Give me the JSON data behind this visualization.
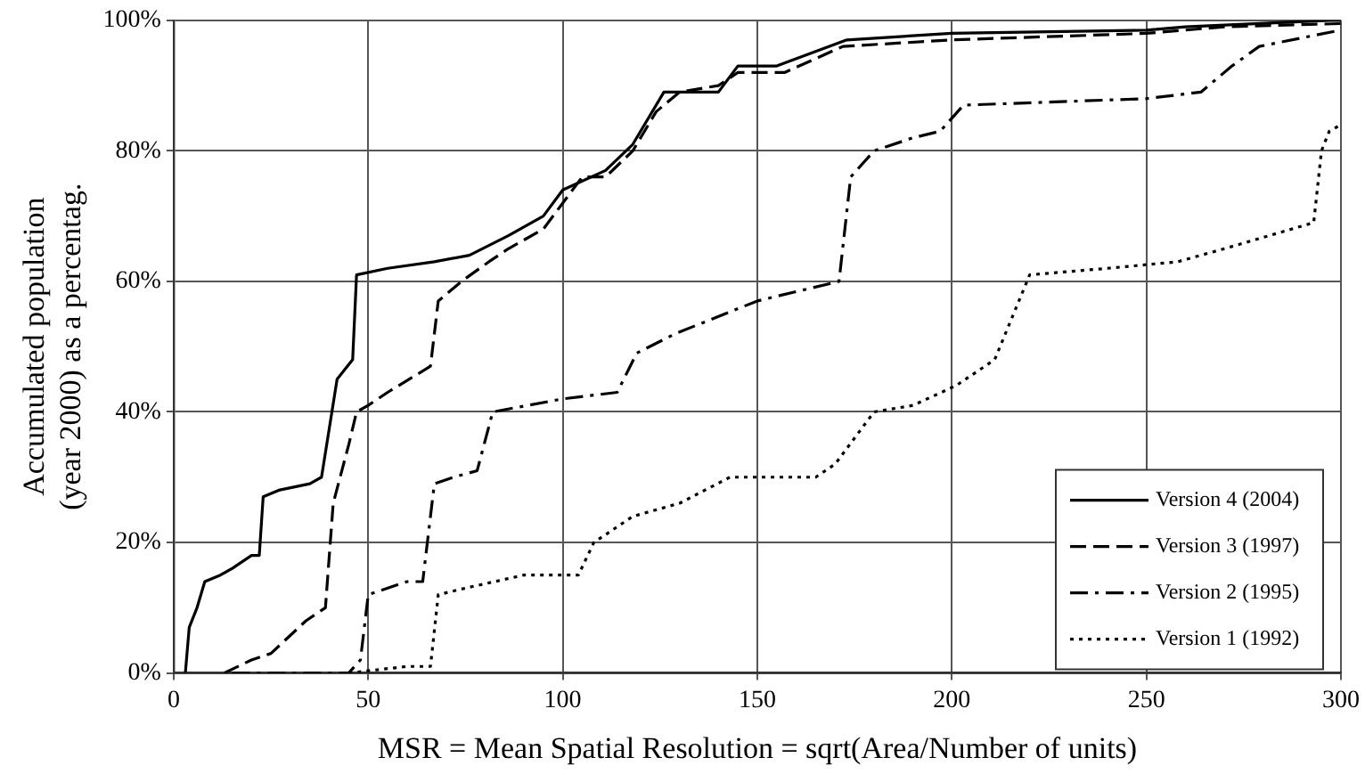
{
  "chart_data": {
    "type": "line",
    "xlabel": "MSR = Mean Spatial Resolution = sqrt(Area/Number of units)",
    "ylabel": "Accumulated population\n(year 2000) as a percentag.",
    "xlim": [
      0,
      300
    ],
    "xticks": [
      0,
      50,
      100,
      150,
      200,
      250,
      300
    ],
    "ylim": [
      0,
      100
    ],
    "yticks": [
      {
        "value": 0,
        "label": "0%"
      },
      {
        "value": 20,
        "label": "20%"
      },
      {
        "value": 40,
        "label": "40%"
      },
      {
        "value": 60,
        "label": "60%"
      },
      {
        "value": 80,
        "label": "80%"
      },
      {
        "value": 100,
        "label": "100%"
      }
    ],
    "grid": true,
    "legend": "bottom right",
    "marker": "none",
    "series": [
      {
        "name": "Version 4 (2004)",
        "color": "#000000",
        "line_style": "solid",
        "x": [
          3,
          4,
          6,
          8,
          12,
          15,
          20,
          22,
          23,
          27,
          35,
          38,
          42,
          46,
          47,
          55,
          67,
          76,
          86,
          95,
          100,
          111,
          118,
          126,
          140,
          145,
          155,
          173,
          200,
          250,
          260,
          297,
          300
        ],
        "values": [
          0,
          7,
          10,
          14,
          15,
          16,
          18,
          18,
          27,
          28,
          29,
          30,
          45,
          48,
          61,
          62,
          63,
          64,
          67,
          70,
          74,
          77,
          81,
          89,
          89,
          93,
          93,
          97,
          98,
          98.5,
          99,
          100,
          100
        ]
      },
      {
        "name": "Version 3 (1997)",
        "color": "#000000",
        "line_style": "dashed",
        "x": [
          13,
          20,
          25,
          34,
          39,
          41,
          45,
          47,
          50,
          55,
          66,
          68,
          74,
          81,
          86,
          95,
          100,
          105,
          111,
          118,
          124,
          130,
          140,
          145,
          157,
          172,
          200,
          250,
          270,
          300
        ],
        "values": [
          0,
          2,
          3,
          8,
          10,
          26,
          35,
          40,
          41,
          43,
          47,
          57,
          60,
          63,
          65,
          68,
          72,
          76,
          76,
          80,
          86,
          89,
          90,
          92,
          92,
          96,
          97,
          98,
          99,
          99.5
        ]
      },
      {
        "name": "Version 2 (1995)",
        "color": "#000000",
        "line_style": "dashdot",
        "x": [
          15,
          45,
          48,
          50,
          60,
          64,
          67,
          72,
          78,
          82,
          100,
          114,
          119,
          129,
          150,
          171,
          174,
          180,
          190,
          197,
          203,
          250,
          264,
          272,
          279,
          300
        ],
        "values": [
          0,
          0,
          2,
          12,
          14,
          14,
          29,
          30,
          31,
          40,
          42,
          43,
          49,
          52,
          57,
          60,
          76,
          80,
          82,
          83,
          87,
          88,
          89,
          93,
          96,
          98.5
        ]
      },
      {
        "name": "Version 1 (1992)",
        "color": "#000000",
        "line_style": "dotted",
        "x": [
          45,
          60,
          66,
          68,
          75,
          90,
          104,
          108,
          118,
          130,
          143,
          165,
          170,
          180,
          190,
          201,
          211,
          220,
          240,
          258,
          270,
          293,
          295,
          297,
          300
        ],
        "values": [
          0,
          1,
          1,
          12,
          13,
          15,
          15,
          20,
          24,
          26,
          30,
          30,
          32,
          40,
          41,
          44,
          48,
          61,
          62,
          63,
          65,
          69,
          80,
          83,
          84
        ]
      }
    ]
  }
}
